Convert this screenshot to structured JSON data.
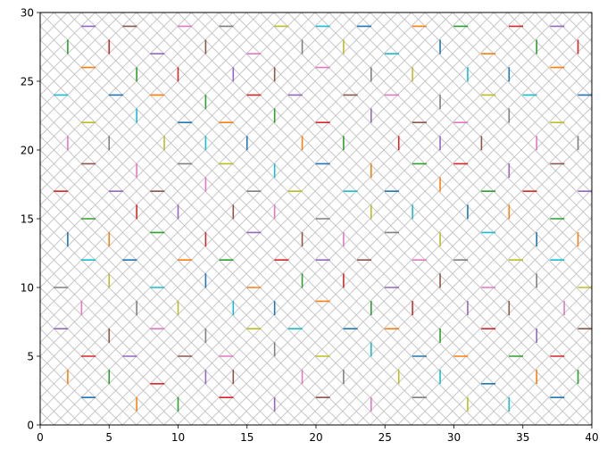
{
  "chart_data": {
    "type": "scatter",
    "title": "",
    "xlabel": "",
    "ylabel": "",
    "xlim": [
      0,
      40
    ],
    "ylim": [
      0,
      30
    ],
    "grid": false,
    "background_hatch": "x",
    "x_ticks": [
      "0",
      "5",
      "10",
      "15",
      "20",
      "25",
      "30",
      "35",
      "40"
    ],
    "y_ticks": [
      "0",
      "5",
      "10",
      "15",
      "20",
      "25",
      "30"
    ],
    "palette": {
      "blue": "#1f77b4",
      "orange": "#ff7f0e",
      "green": "#2ca02c",
      "red": "#d62728",
      "purple": "#9467bd",
      "brown": "#8c564b",
      "pink": "#e377c2",
      "gray": "#7f7f7f",
      "olive": "#bcbd22",
      "cyan": "#17becf"
    },
    "horizontal_markers": [
      [
        3.5,
        29,
        "purple"
      ],
      [
        6.5,
        29,
        "brown"
      ],
      [
        10.5,
        29,
        "pink"
      ],
      [
        13.5,
        29,
        "gray"
      ],
      [
        17.5,
        29,
        "olive"
      ],
      [
        20.5,
        29,
        "cyan"
      ],
      [
        23.5,
        29,
        "blue"
      ],
      [
        27.5,
        29,
        "orange"
      ],
      [
        30.5,
        29,
        "green"
      ],
      [
        34.5,
        29,
        "red"
      ],
      [
        37.5,
        29,
        "purple"
      ],
      [
        8.5,
        27,
        "purple"
      ],
      [
        15.5,
        27,
        "pink"
      ],
      [
        25.5,
        27,
        "cyan"
      ],
      [
        32.5,
        27,
        "orange"
      ],
      [
        3.5,
        26,
        "orange"
      ],
      [
        20.5,
        26,
        "pink"
      ],
      [
        37.5,
        26,
        "orange"
      ],
      [
        1.5,
        24,
        "cyan"
      ],
      [
        5.5,
        24,
        "blue"
      ],
      [
        8.5,
        24,
        "orange"
      ],
      [
        15.5,
        24,
        "red"
      ],
      [
        18.5,
        24,
        "purple"
      ],
      [
        22.5,
        24,
        "brown"
      ],
      [
        25.5,
        24,
        "pink"
      ],
      [
        32.5,
        24,
        "olive"
      ],
      [
        35.5,
        24,
        "cyan"
      ],
      [
        39.5,
        24,
        "blue"
      ],
      [
        3.5,
        22,
        "olive"
      ],
      [
        10.5,
        22,
        "blue"
      ],
      [
        13.5,
        22,
        "orange"
      ],
      [
        20.5,
        22,
        "red"
      ],
      [
        27.5,
        22,
        "brown"
      ],
      [
        30.5,
        22,
        "pink"
      ],
      [
        37.5,
        22,
        "olive"
      ],
      [
        3.5,
        19,
        "brown"
      ],
      [
        10.5,
        19,
        "gray"
      ],
      [
        13.5,
        19,
        "olive"
      ],
      [
        20.5,
        19,
        "blue"
      ],
      [
        27.5,
        19,
        "green"
      ],
      [
        30.5,
        19,
        "red"
      ],
      [
        37.5,
        19,
        "brown"
      ],
      [
        1.5,
        17,
        "red"
      ],
      [
        5.5,
        17,
        "purple"
      ],
      [
        8.5,
        17,
        "brown"
      ],
      [
        15.5,
        17,
        "gray"
      ],
      [
        18.5,
        17,
        "olive"
      ],
      [
        22.5,
        17,
        "cyan"
      ],
      [
        25.5,
        17,
        "blue"
      ],
      [
        32.5,
        17,
        "green"
      ],
      [
        35.5,
        17,
        "red"
      ],
      [
        39.5,
        17,
        "purple"
      ],
      [
        3.5,
        15,
        "green"
      ],
      [
        20.5,
        15,
        "gray"
      ],
      [
        37.5,
        15,
        "green"
      ],
      [
        8.5,
        14,
        "green"
      ],
      [
        15.5,
        14,
        "purple"
      ],
      [
        25.5,
        14,
        "gray"
      ],
      [
        32.5,
        14,
        "cyan"
      ],
      [
        3.5,
        12,
        "cyan"
      ],
      [
        6.5,
        12,
        "blue"
      ],
      [
        10.5,
        12,
        "orange"
      ],
      [
        13.5,
        12,
        "green"
      ],
      [
        17.5,
        12,
        "red"
      ],
      [
        20.5,
        12,
        "purple"
      ],
      [
        23.5,
        12,
        "brown"
      ],
      [
        27.5,
        12,
        "pink"
      ],
      [
        30.5,
        12,
        "gray"
      ],
      [
        34.5,
        12,
        "olive"
      ],
      [
        37.5,
        12,
        "cyan"
      ],
      [
        1.5,
        10,
        "gray"
      ],
      [
        8.5,
        10,
        "cyan"
      ],
      [
        15.5,
        10,
        "orange"
      ],
      [
        25.5,
        10,
        "purple"
      ],
      [
        32.5,
        10,
        "pink"
      ],
      [
        39.5,
        10,
        "olive"
      ],
      [
        20.5,
        9,
        "orange"
      ],
      [
        1.5,
        7,
        "purple"
      ],
      [
        8.5,
        7,
        "pink"
      ],
      [
        15.5,
        7,
        "olive"
      ],
      [
        18.5,
        7,
        "cyan"
      ],
      [
        22.5,
        7,
        "blue"
      ],
      [
        25.5,
        7,
        "orange"
      ],
      [
        32.5,
        7,
        "red"
      ],
      [
        39.5,
        7,
        "brown"
      ],
      [
        3.5,
        5,
        "red"
      ],
      [
        6.5,
        5,
        "purple"
      ],
      [
        10.5,
        5,
        "brown"
      ],
      [
        13.5,
        5,
        "pink"
      ],
      [
        20.5,
        5,
        "olive"
      ],
      [
        27.5,
        5,
        "blue"
      ],
      [
        30.5,
        5,
        "orange"
      ],
      [
        34.5,
        5,
        "green"
      ],
      [
        37.5,
        5,
        "red"
      ],
      [
        8.5,
        3,
        "red"
      ],
      [
        32.5,
        3,
        "blue"
      ],
      [
        3.5,
        2,
        "blue"
      ],
      [
        13.5,
        2,
        "red"
      ],
      [
        20.5,
        2,
        "brown"
      ],
      [
        27.5,
        2,
        "gray"
      ],
      [
        37.5,
        2,
        "blue"
      ]
    ],
    "vertical_markers": [
      [
        2,
        27.5,
        "green"
      ],
      [
        5,
        27.5,
        "red"
      ],
      [
        12,
        27.5,
        "brown"
      ],
      [
        19,
        27.5,
        "gray"
      ],
      [
        22,
        27.5,
        "olive"
      ],
      [
        29,
        27.5,
        "blue"
      ],
      [
        36,
        27.5,
        "green"
      ],
      [
        39,
        27.5,
        "red"
      ],
      [
        7,
        25.5,
        "green"
      ],
      [
        10,
        25.5,
        "red"
      ],
      [
        14,
        25.5,
        "purple"
      ],
      [
        17,
        25.5,
        "brown"
      ],
      [
        24,
        25.5,
        "gray"
      ],
      [
        27,
        25.5,
        "olive"
      ],
      [
        31,
        25.5,
        "cyan"
      ],
      [
        34,
        25.5,
        "blue"
      ],
      [
        12,
        23.5,
        "green"
      ],
      [
        29,
        23.5,
        "gray"
      ],
      [
        7,
        22.5,
        "cyan"
      ],
      [
        17,
        22.5,
        "green"
      ],
      [
        24,
        22.5,
        "purple"
      ],
      [
        34,
        22.5,
        "gray"
      ],
      [
        2,
        20.5,
        "pink"
      ],
      [
        5,
        20.5,
        "gray"
      ],
      [
        9,
        20.5,
        "olive"
      ],
      [
        12,
        20.5,
        "cyan"
      ],
      [
        15,
        20.5,
        "blue"
      ],
      [
        19,
        20.5,
        "orange"
      ],
      [
        22,
        20.5,
        "green"
      ],
      [
        26,
        20.5,
        "red"
      ],
      [
        29,
        20.5,
        "purple"
      ],
      [
        32,
        20.5,
        "brown"
      ],
      [
        36,
        20.5,
        "pink"
      ],
      [
        39,
        20.5,
        "gray"
      ],
      [
        7,
        18.5,
        "pink"
      ],
      [
        17,
        18.5,
        "cyan"
      ],
      [
        24,
        18.5,
        "orange"
      ],
      [
        34,
        18.5,
        "purple"
      ],
      [
        12,
        17.5,
        "pink"
      ],
      [
        29,
        17.5,
        "orange"
      ],
      [
        7,
        15.5,
        "red"
      ],
      [
        10,
        15.5,
        "purple"
      ],
      [
        14,
        15.5,
        "brown"
      ],
      [
        17,
        15.5,
        "pink"
      ],
      [
        24,
        15.5,
        "olive"
      ],
      [
        27,
        15.5,
        "cyan"
      ],
      [
        31,
        15.5,
        "blue"
      ],
      [
        34,
        15.5,
        "orange"
      ],
      [
        2,
        13.5,
        "blue"
      ],
      [
        5,
        13.5,
        "orange"
      ],
      [
        12,
        13.5,
        "red"
      ],
      [
        19,
        13.5,
        "brown"
      ],
      [
        22,
        13.5,
        "pink"
      ],
      [
        29,
        13.5,
        "olive"
      ],
      [
        36,
        13.5,
        "blue"
      ],
      [
        39,
        13.5,
        "orange"
      ],
      [
        5,
        10.5,
        "olive"
      ],
      [
        12,
        10.5,
        "blue"
      ],
      [
        19,
        10.5,
        "green"
      ],
      [
        22,
        10.5,
        "red"
      ],
      [
        29,
        10.5,
        "brown"
      ],
      [
        36,
        10.5,
        "gray"
      ],
      [
        3,
        8.5,
        "pink"
      ],
      [
        7,
        8.5,
        "gray"
      ],
      [
        10,
        8.5,
        "olive"
      ],
      [
        14,
        8.5,
        "cyan"
      ],
      [
        17,
        8.5,
        "blue"
      ],
      [
        24,
        8.5,
        "green"
      ],
      [
        27,
        8.5,
        "red"
      ],
      [
        31,
        8.5,
        "purple"
      ],
      [
        34,
        8.5,
        "brown"
      ],
      [
        38,
        8.5,
        "pink"
      ],
      [
        5,
        6.5,
        "brown"
      ],
      [
        12,
        6.5,
        "gray"
      ],
      [
        29,
        6.5,
        "green"
      ],
      [
        36,
        6.5,
        "purple"
      ],
      [
        17,
        5.5,
        "gray"
      ],
      [
        24,
        5.5,
        "cyan"
      ],
      [
        2,
        3.5,
        "orange"
      ],
      [
        5,
        3.5,
        "green"
      ],
      [
        12,
        3.5,
        "purple"
      ],
      [
        14,
        3.5,
        "brown"
      ],
      [
        19,
        3.5,
        "pink"
      ],
      [
        22,
        3.5,
        "gray"
      ],
      [
        26,
        3.5,
        "olive"
      ],
      [
        29,
        3.5,
        "cyan"
      ],
      [
        36,
        3.5,
        "orange"
      ],
      [
        39,
        3.5,
        "green"
      ],
      [
        7,
        1.5,
        "orange"
      ],
      [
        10,
        1.5,
        "green"
      ],
      [
        17,
        1.5,
        "purple"
      ],
      [
        24,
        1.5,
        "pink"
      ],
      [
        31,
        1.5,
        "olive"
      ],
      [
        34,
        1.5,
        "cyan"
      ]
    ]
  }
}
